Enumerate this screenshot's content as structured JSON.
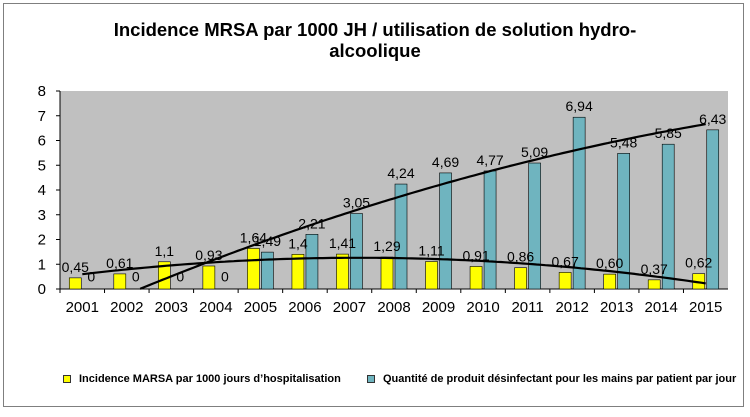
{
  "chart_data": {
    "type": "bar",
    "title_lines": [
      "Incidence MRSA par 1000 JH / utilisation de solution hydro-",
      "alcoolique"
    ],
    "categories": [
      "2001",
      "2002",
      "2003",
      "2004",
      "2005",
      "2006",
      "2007",
      "2008",
      "2009",
      "2010",
      "2011",
      "2012",
      "2013",
      "2014",
      "2015"
    ],
    "series": [
      {
        "name": "Incidence  MARSA par 1000 jours d’hospitalisation",
        "color": "#ffff00",
        "values": [
          0.45,
          0.61,
          1.1,
          0.93,
          1.64,
          1.4,
          1.41,
          1.29,
          1.11,
          0.91,
          0.86,
          0.67,
          0.6,
          0.37,
          0.62
        ],
        "labels": [
          "0,45",
          "0,61",
          "1,1",
          "0,93",
          "1,64",
          "1,4",
          "1,41",
          "1,29",
          "1,11",
          "0,91",
          "0,86",
          "0,67",
          "0,60",
          "0,37",
          "0,62"
        ]
      },
      {
        "name": "Quantité de produit désinfectant pour les mains par patient par jour",
        "color": "#6fb4bf",
        "values": [
          0,
          0,
          0,
          0,
          1.49,
          2.21,
          3.05,
          4.24,
          4.69,
          4.77,
          5.09,
          6.94,
          5.48,
          5.85,
          6.43
        ],
        "labels": [
          "0",
          "0",
          "0",
          "0",
          "1,49",
          "2,21",
          "3,05",
          "4,24",
          "4,69",
          "4,77",
          "5,09",
          "6,94",
          "5,48",
          "5,85",
          "6,43"
        ]
      }
    ],
    "trendlines": [
      {
        "type": "polynomial",
        "series": 0
      },
      {
        "type": "polynomial",
        "series": 1
      }
    ],
    "ylim": [
      0,
      8
    ],
    "yticks": [
      "0",
      "1",
      "2",
      "3",
      "4",
      "5",
      "6",
      "7",
      "8"
    ],
    "plot_background": "#c0c0c0",
    "grid": false,
    "legend_position": "bottom"
  }
}
